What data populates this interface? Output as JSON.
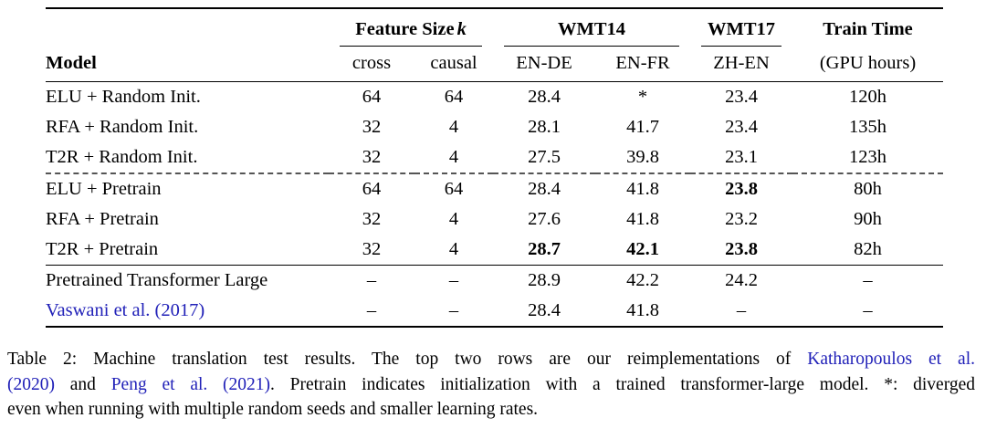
{
  "page": {
    "background": "#ffffff",
    "text_color": "#000000",
    "link_color": "#2121b8"
  },
  "table": {
    "model_header": "Model",
    "groups": [
      {
        "label": "Feature Size",
        "math_symbol": "k"
      },
      {
        "label": "WMT14"
      },
      {
        "label": "WMT17"
      },
      {
        "label": "Train Time"
      }
    ],
    "subheaders": [
      "cross",
      "causal",
      "EN-DE",
      "EN-FR",
      "ZH-EN",
      "(GPU hours)"
    ],
    "rows": [
      {
        "model": "ELU + Random Init.",
        "cells": [
          "64",
          "64",
          "28.4",
          "*",
          "23.4",
          "120h"
        ],
        "bold": []
      },
      {
        "model": "RFA + Random Init.",
        "cells": [
          "32",
          "4",
          "28.1",
          "41.7",
          "23.4",
          "135h"
        ],
        "bold": []
      },
      {
        "model": "T2R + Random Init.",
        "cells": [
          "32",
          "4",
          "27.5",
          "39.8",
          "23.1",
          "123h"
        ],
        "bold": [],
        "dashed_below": true
      },
      {
        "model": "ELU + Pretrain",
        "cells": [
          "64",
          "64",
          "28.4",
          "41.8",
          "23.8",
          "80h"
        ],
        "bold": [
          4
        ]
      },
      {
        "model": "RFA + Pretrain",
        "cells": [
          "32",
          "4",
          "27.6",
          "41.8",
          "23.2",
          "90h"
        ],
        "bold": []
      },
      {
        "model": "T2R + Pretrain",
        "cells": [
          "32",
          "4",
          "28.7",
          "42.1",
          "23.8",
          "82h"
        ],
        "bold": [
          2,
          3,
          4
        ],
        "solid_below": true
      },
      {
        "model": "Pretrained Transformer Large",
        "cells": [
          "–",
          "–",
          "28.9",
          "42.2",
          "24.2",
          "–"
        ],
        "bold": []
      },
      {
        "model": "Vaswani et al. (2017)",
        "model_link": true,
        "cells": [
          "–",
          "–",
          "28.4",
          "41.8",
          "–",
          "–"
        ],
        "bold": []
      }
    ]
  },
  "caption": {
    "lines": [
      {
        "justify": true,
        "segments": [
          {
            "t": "Table 2: Machine translation test results. The top two rows are our reimplementations of ",
            "link": false
          },
          {
            "t": "Katharopoulos et al.",
            "link": true
          }
        ]
      },
      {
        "justify": true,
        "segments": [
          {
            "t": "(2020)",
            "link": true
          },
          {
            "t": " and ",
            "link": false
          },
          {
            "t": "Peng et al. (2021)",
            "link": true
          },
          {
            "t": ". Pretrain indicates initialization with a trained transformer-large model. *: diverged",
            "link": false
          }
        ]
      },
      {
        "justify": false,
        "segments": [
          {
            "t": "even when running with multiple random seeds and smaller learning rates.",
            "link": false
          }
        ]
      }
    ]
  }
}
